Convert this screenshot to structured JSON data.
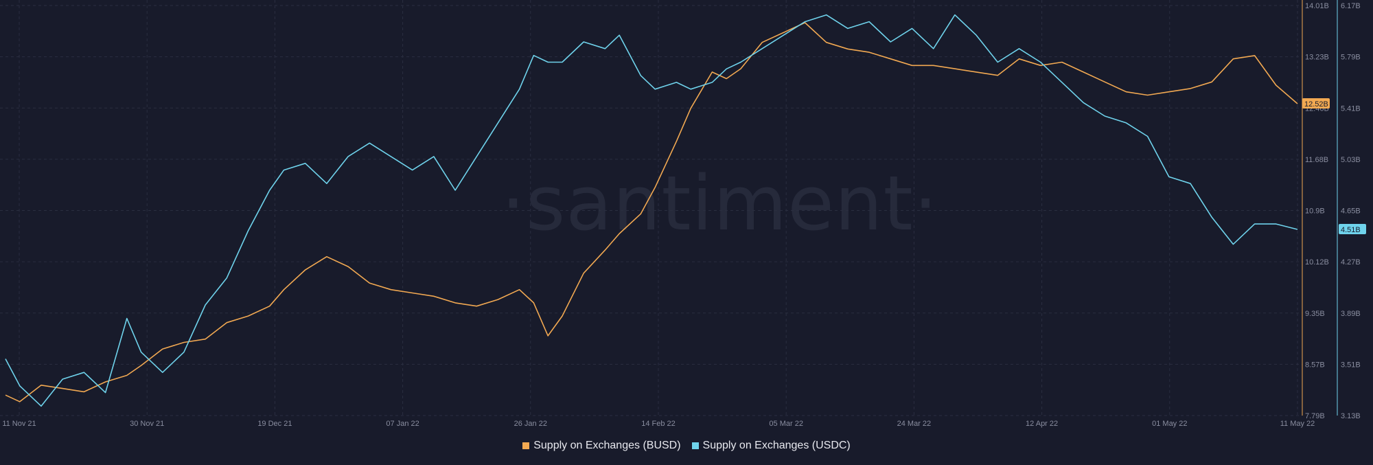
{
  "watermark": "·santiment·",
  "colors": {
    "background": "#181b2b",
    "grid": "#2a2e40",
    "busd": "#f2a952",
    "usdc": "#6fd3ec",
    "tick_text": "#8a8ea0"
  },
  "chart_data": {
    "type": "line",
    "title": "",
    "x_ticks": [
      "11 Nov 21",
      "30 Nov 21",
      "19 Dec 21",
      "07 Jan 22",
      "26 Jan 22",
      "14 Feb 22",
      "05 Mar 22",
      "24 Mar 22",
      "12 Apr 22",
      "01 May 22",
      "11 May 22"
    ],
    "x_range": [
      "2021-11-11",
      "2022-05-11"
    ],
    "y_left": {
      "label": "",
      "ticks": [
        "14.01B",
        "13.23B",
        "12.46B",
        "11.68B",
        "10.9B",
        "10.12B",
        "9.35B",
        "8.57B",
        "7.79B"
      ],
      "range": [
        7.79,
        14.01
      ],
      "current_value_label": "12.52B"
    },
    "y_right": {
      "label": "",
      "ticks": [
        "6.17B",
        "5.79B",
        "5.41B",
        "5.03B",
        "4.65B",
        "4.27B",
        "3.89B",
        "3.51B",
        "3.13B"
      ],
      "range": [
        3.13,
        6.17
      ],
      "current_value_label": "4.51B"
    },
    "grid": true,
    "legend_position": "bottom-center",
    "series": [
      {
        "name": "Supply on Exchanges (BUSD)",
        "axis": "left",
        "color": "#f2a952",
        "dates": [
          "2021-11-11",
          "2021-11-13",
          "2021-11-16",
          "2021-11-19",
          "2021-11-22",
          "2021-11-25",
          "2021-11-28",
          "2021-11-30",
          "2021-12-03",
          "2021-12-06",
          "2021-12-09",
          "2021-12-12",
          "2021-12-15",
          "2021-12-18",
          "2021-12-20",
          "2021-12-23",
          "2021-12-26",
          "2021-12-29",
          "2022-01-01",
          "2022-01-04",
          "2022-01-07",
          "2022-01-10",
          "2022-01-13",
          "2022-01-16",
          "2022-01-19",
          "2022-01-22",
          "2022-01-24",
          "2022-01-26",
          "2022-01-28",
          "2022-01-31",
          "2022-02-03",
          "2022-02-05",
          "2022-02-08",
          "2022-02-10",
          "2022-02-13",
          "2022-02-15",
          "2022-02-18",
          "2022-02-20",
          "2022-02-22",
          "2022-02-25",
          "2022-02-28",
          "2022-03-03",
          "2022-03-06",
          "2022-03-09",
          "2022-03-12",
          "2022-03-15",
          "2022-03-18",
          "2022-03-21",
          "2022-03-24",
          "2022-03-27",
          "2022-03-30",
          "2022-04-02",
          "2022-04-05",
          "2022-04-08",
          "2022-04-11",
          "2022-04-14",
          "2022-04-17",
          "2022-04-20",
          "2022-04-23",
          "2022-04-26",
          "2022-04-29",
          "2022-05-02",
          "2022-05-05",
          "2022-05-08",
          "2022-05-11"
        ],
        "values": [
          8.1,
          8.0,
          8.25,
          8.2,
          8.15,
          8.3,
          8.4,
          8.55,
          8.8,
          8.9,
          8.95,
          9.2,
          9.3,
          9.45,
          9.7,
          10.0,
          10.2,
          10.05,
          9.8,
          9.7,
          9.65,
          9.6,
          9.5,
          9.45,
          9.55,
          9.7,
          9.5,
          9.0,
          9.3,
          9.95,
          10.3,
          10.55,
          10.85,
          11.25,
          11.95,
          12.45,
          13.0,
          12.9,
          13.05,
          13.45,
          13.6,
          13.75,
          13.45,
          13.35,
          13.3,
          13.2,
          13.1,
          13.1,
          13.05,
          13.0,
          12.95,
          13.2,
          13.1,
          13.15,
          13.0,
          12.85,
          12.7,
          12.65,
          12.7,
          12.75,
          12.85,
          13.2,
          13.25,
          12.8,
          12.52
        ]
      },
      {
        "name": "Supply on Exchanges (USDC)",
        "axis": "right",
        "color": "#6fd3ec",
        "dates": [
          "2021-11-11",
          "2021-11-13",
          "2021-11-16",
          "2021-11-19",
          "2021-11-22",
          "2021-11-25",
          "2021-11-28",
          "2021-11-30",
          "2021-12-03",
          "2021-12-06",
          "2021-12-09",
          "2021-12-12",
          "2021-12-15",
          "2021-12-18",
          "2021-12-20",
          "2021-12-23",
          "2021-12-26",
          "2021-12-29",
          "2022-01-01",
          "2022-01-04",
          "2022-01-07",
          "2022-01-10",
          "2022-01-13",
          "2022-01-16",
          "2022-01-19",
          "2022-01-22",
          "2022-01-24",
          "2022-01-26",
          "2022-01-28",
          "2022-01-31",
          "2022-02-03",
          "2022-02-05",
          "2022-02-08",
          "2022-02-10",
          "2022-02-13",
          "2022-02-15",
          "2022-02-18",
          "2022-02-20",
          "2022-02-22",
          "2022-02-25",
          "2022-02-28",
          "2022-03-03",
          "2022-03-06",
          "2022-03-09",
          "2022-03-12",
          "2022-03-15",
          "2022-03-18",
          "2022-03-21",
          "2022-03-24",
          "2022-03-27",
          "2022-03-30",
          "2022-04-02",
          "2022-04-05",
          "2022-04-08",
          "2022-04-11",
          "2022-04-14",
          "2022-04-17",
          "2022-04-20",
          "2022-04-23",
          "2022-04-26",
          "2022-04-29",
          "2022-05-02",
          "2022-05-05",
          "2022-05-08",
          "2022-05-11"
        ],
        "values": [
          3.55,
          3.35,
          3.2,
          3.4,
          3.45,
          3.3,
          3.85,
          3.6,
          3.45,
          3.6,
          3.95,
          4.15,
          4.5,
          4.8,
          4.95,
          5.0,
          4.85,
          5.05,
          5.15,
          5.05,
          4.95,
          5.05,
          4.8,
          5.05,
          5.3,
          5.55,
          5.8,
          5.75,
          5.75,
          5.9,
          5.85,
          5.95,
          5.65,
          5.55,
          5.6,
          5.55,
          5.6,
          5.7,
          5.75,
          5.85,
          5.95,
          6.05,
          6.1,
          6.0,
          6.05,
          5.9,
          6.0,
          5.85,
          6.1,
          5.95,
          5.75,
          5.85,
          5.75,
          5.6,
          5.45,
          5.35,
          5.3,
          5.2,
          4.9,
          4.85,
          4.6,
          4.4,
          4.55,
          4.55,
          4.51
        ]
      }
    ]
  }
}
